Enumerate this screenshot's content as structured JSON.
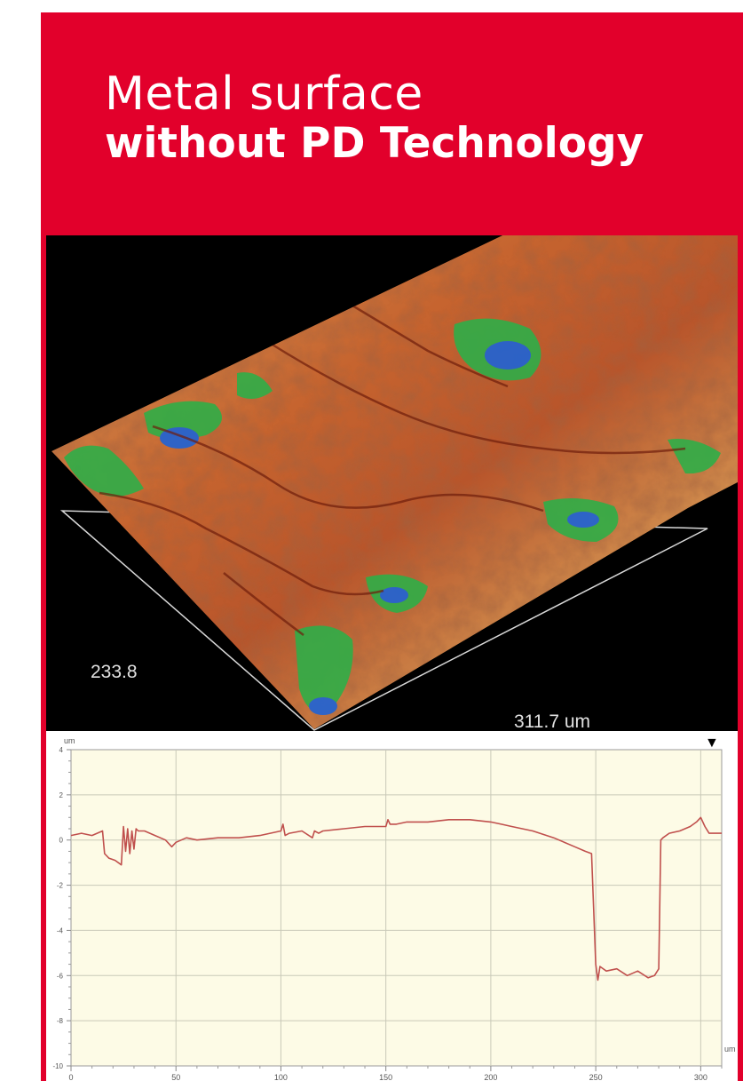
{
  "header": {
    "title_line1": "Metal surface",
    "title_line2": "without PD Technology",
    "background_color": "#e2002b",
    "text_color": "#ffffff"
  },
  "surface_map": {
    "width_label": "233.8",
    "length_label": "311.7 um",
    "colors": {
      "high": "#c45a2c",
      "mid": "#c99a52",
      "low": "#2fae48",
      "pit": "#1f63d6"
    }
  },
  "chart_data": {
    "type": "line",
    "title": "",
    "xlabel": "um",
    "ylabel": "um",
    "xlim": [
      0,
      310
    ],
    "ylim": [
      -10,
      4
    ],
    "xticks": [
      0,
      50,
      100,
      150,
      200,
      250,
      300
    ],
    "yticks": [
      4,
      2,
      0,
      -2,
      -4,
      -6,
      -8,
      -10
    ],
    "ytick_labels": [
      "4",
      "2",
      "0",
      "-2",
      "-4",
      "-6",
      "-8",
      "-10"
    ],
    "grid": true,
    "marker": "▼",
    "series": [
      {
        "color": "#c0504d",
        "x": [
          0,
          5,
          10,
          15,
          16,
          18,
          21,
          24,
          25,
          26,
          27,
          28,
          29,
          30,
          31,
          32,
          35,
          40,
          45,
          48,
          50,
          55,
          60,
          70,
          80,
          90,
          100,
          101,
          102,
          104,
          110,
          115,
          116,
          118,
          120,
          130,
          140,
          150,
          151,
          152,
          155,
          160,
          170,
          180,
          190,
          200,
          205,
          210,
          220,
          230,
          240,
          245,
          248,
          250,
          251,
          252,
          255,
          260,
          265,
          270,
          275,
          278,
          280,
          281,
          282,
          285,
          290,
          295,
          298,
          300,
          302,
          304,
          310
        ],
        "y": [
          0.2,
          0.3,
          0.2,
          0.4,
          -0.6,
          -0.8,
          -0.9,
          -1.1,
          0.6,
          -0.5,
          0.5,
          -0.6,
          0.4,
          -0.4,
          0.5,
          0.4,
          0.4,
          0.2,
          0.0,
          -0.3,
          -0.1,
          0.1,
          0.0,
          0.1,
          0.1,
          0.2,
          0.4,
          0.7,
          0.2,
          0.3,
          0.4,
          0.1,
          0.4,
          0.3,
          0.4,
          0.5,
          0.6,
          0.6,
          0.9,
          0.7,
          0.7,
          0.8,
          0.8,
          0.9,
          0.9,
          0.8,
          0.7,
          0.6,
          0.4,
          0.1,
          -0.3,
          -0.5,
          -0.6,
          -5.5,
          -6.2,
          -5.6,
          -5.8,
          -5.7,
          -6.0,
          -5.8,
          -6.1,
          -6.0,
          -5.7,
          0.0,
          0.1,
          0.3,
          0.4,
          0.6,
          0.8,
          1.0,
          0.6,
          0.3,
          0.3
        ]
      }
    ]
  }
}
